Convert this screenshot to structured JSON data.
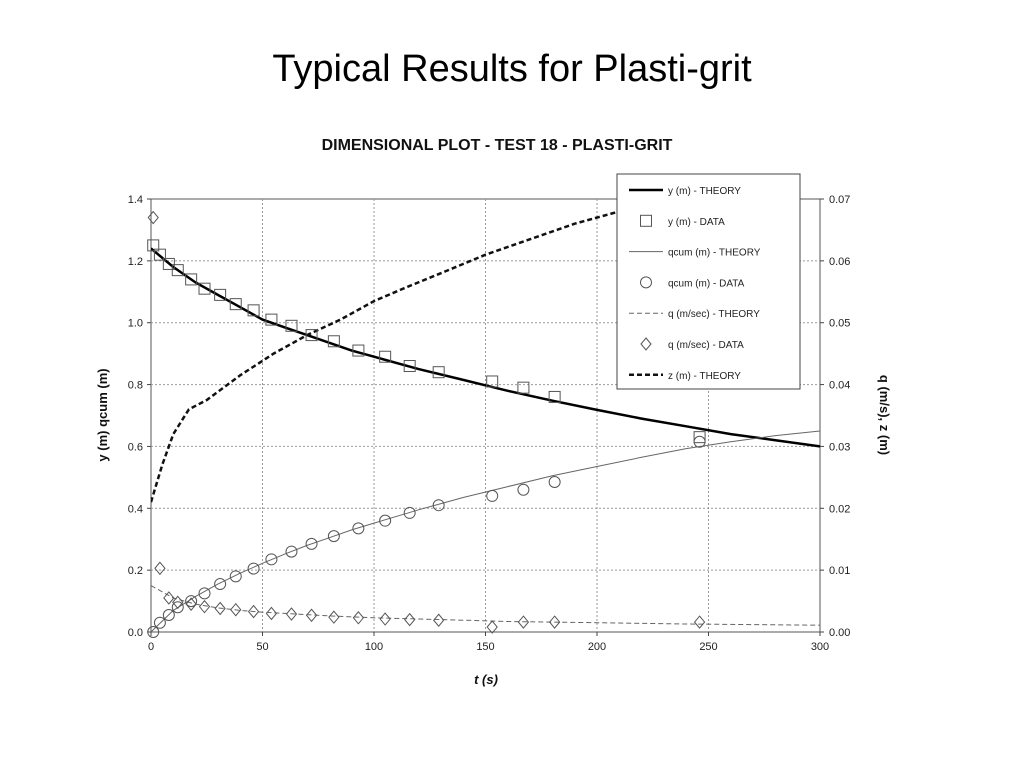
{
  "slide": {
    "title": "Typical Results for Plasti-grit"
  },
  "chart_data": {
    "type": "line",
    "title": "DIMENSIONAL PLOT - TEST 18 - PLASTI-GRIT",
    "xlabel": "t (s)",
    "ylabel_left": "y (m)  qcum (m)",
    "ylabel_right": "q (m/s), z (m)",
    "xlim": [
      0,
      300
    ],
    "ylim_left": [
      0,
      1.4
    ],
    "ylim_right": [
      0,
      0.07
    ],
    "x_ticks": [
      "0",
      "50",
      "100",
      "150",
      "200",
      "250",
      "300"
    ],
    "y_left_ticks": [
      "0.0",
      "0.2",
      "0.4",
      "0.6",
      "0.8",
      "1.0",
      "1.2",
      "1.4"
    ],
    "y_right_ticks": [
      "0.00",
      "0.01",
      "0.02",
      "0.03",
      "0.04",
      "0.05",
      "0.06",
      "0.07"
    ],
    "grid": true,
    "legend_position": "top-right",
    "series": [
      {
        "name": "y (m) - THEORY",
        "axis": "left",
        "kind": "line",
        "style": "solid-thick",
        "x": [
          0,
          10,
          20,
          30,
          40,
          50,
          60,
          70,
          80,
          90,
          100,
          120,
          140,
          160,
          180,
          200,
          220,
          240,
          260,
          280,
          300
        ],
        "y": [
          1.24,
          1.18,
          1.13,
          1.09,
          1.05,
          1.01,
          0.985,
          0.96,
          0.935,
          0.91,
          0.89,
          0.85,
          0.815,
          0.78,
          0.748,
          0.718,
          0.69,
          0.665,
          0.64,
          0.62,
          0.6
        ]
      },
      {
        "name": "y (m) - DATA",
        "axis": "left",
        "kind": "marker",
        "marker": "square",
        "x": [
          1,
          4,
          8,
          12,
          18,
          24,
          31,
          38,
          46,
          54,
          63,
          72,
          82,
          93,
          105,
          116,
          129,
          153,
          167,
          181,
          246
        ],
        "y": [
          1.25,
          1.22,
          1.19,
          1.17,
          1.14,
          1.11,
          1.09,
          1.06,
          1.04,
          1.01,
          0.99,
          0.96,
          0.94,
          0.91,
          0.89,
          0.86,
          0.84,
          0.81,
          0.79,
          0.76,
          0.63
        ]
      },
      {
        "name": "qcum (m) - THEORY",
        "axis": "left",
        "kind": "line",
        "style": "thin",
        "x": [
          0,
          10,
          20,
          30,
          40,
          50,
          60,
          70,
          80,
          90,
          100,
          120,
          140,
          160,
          180,
          200,
          220,
          240,
          260,
          280,
          300
        ],
        "y": [
          0.0,
          0.07,
          0.115,
          0.155,
          0.19,
          0.222,
          0.252,
          0.28,
          0.305,
          0.33,
          0.352,
          0.395,
          0.435,
          0.47,
          0.505,
          0.535,
          0.565,
          0.593,
          0.615,
          0.635,
          0.65
        ]
      },
      {
        "name": "qcum (m) - DATA",
        "axis": "left",
        "kind": "marker",
        "marker": "circle",
        "x": [
          1,
          4,
          8,
          12,
          18,
          24,
          31,
          38,
          46,
          54,
          63,
          72,
          82,
          93,
          105,
          116,
          129,
          153,
          167,
          181,
          246
        ],
        "y": [
          0.0,
          0.03,
          0.055,
          0.08,
          0.1,
          0.125,
          0.155,
          0.18,
          0.205,
          0.235,
          0.26,
          0.285,
          0.31,
          0.335,
          0.36,
          0.385,
          0.41,
          0.44,
          0.46,
          0.485,
          0.615
        ]
      },
      {
        "name": "q (m/sec) - THEORY",
        "axis": "right",
        "kind": "line",
        "style": "dashed-thin",
        "x": [
          0,
          10,
          20,
          30,
          40,
          50,
          60,
          80,
          100,
          120,
          140,
          160,
          180,
          200,
          240,
          300
        ],
        "y": [
          0.0075,
          0.0055,
          0.0045,
          0.0039,
          0.0035,
          0.0032,
          0.003,
          0.0026,
          0.0023,
          0.0021,
          0.0019,
          0.0017,
          0.0016,
          0.0015,
          0.0013,
          0.0011
        ]
      },
      {
        "name": "q (m/sec) - DATA",
        "axis": "right",
        "kind": "marker",
        "marker": "diamond",
        "x": [
          1,
          4,
          8,
          12,
          18,
          24,
          31,
          38,
          46,
          54,
          63,
          72,
          82,
          93,
          105,
          116,
          129,
          153,
          167,
          181,
          246
        ],
        "y": [
          0.067,
          0.0103,
          0.0055,
          0.0048,
          0.0045,
          0.0041,
          0.0038,
          0.0036,
          0.0033,
          0.003,
          0.0029,
          0.0027,
          0.0024,
          0.0023,
          0.0021,
          0.002,
          0.0019,
          0.0008,
          0.0016,
          0.0016,
          0.0016
        ]
      },
      {
        "name": "z (m) - THEORY",
        "axis": "right",
        "kind": "line",
        "style": "dashed-thick",
        "x": [
          0,
          5,
          10,
          17,
          25,
          40,
          55,
          70,
          85,
          100,
          115,
          130,
          150,
          170,
          190,
          210
        ],
        "y": [
          0.021,
          0.027,
          0.032,
          0.036,
          0.0375,
          0.0415,
          0.045,
          0.048,
          0.0505,
          0.0535,
          0.0558,
          0.058,
          0.061,
          0.0635,
          0.066,
          0.068
        ]
      }
    ]
  }
}
